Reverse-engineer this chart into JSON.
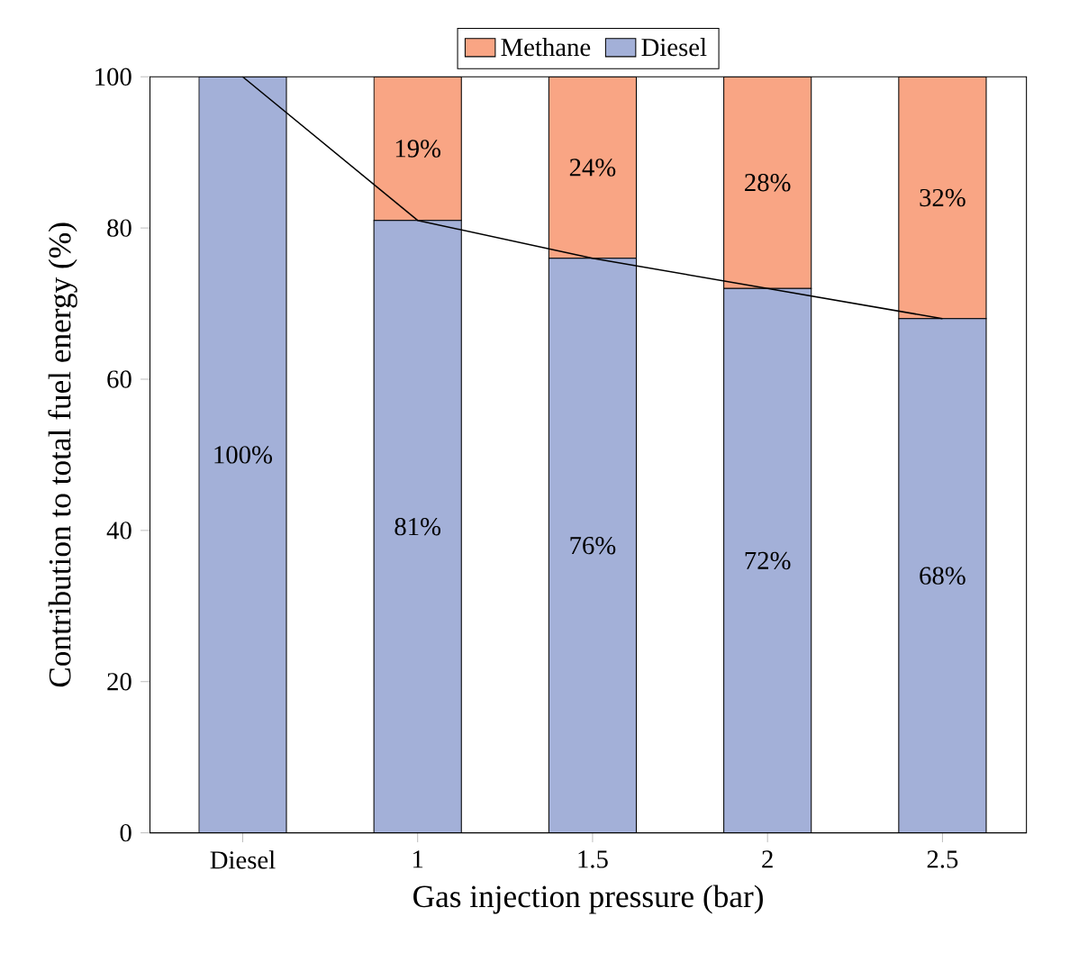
{
  "chart_data": {
    "type": "bar",
    "stacked": true,
    "xlabel": "Gas injection pressure (bar)",
    "ylabel": "Contribution to total fuel energy (%)",
    "categories": [
      "Diesel",
      "1",
      "1.5",
      "2",
      "2.5"
    ],
    "series": [
      {
        "name": "Diesel",
        "color": "#a3b0d8",
        "values": [
          100,
          81,
          76,
          72,
          68
        ],
        "value_labels": [
          "100%",
          "81%",
          "76%",
          "72%",
          "68%"
        ]
      },
      {
        "name": "Methane",
        "color": "#f9a584",
        "values": [
          0,
          19,
          24,
          28,
          32
        ],
        "value_labels": [
          null,
          "19%",
          "24%",
          "28%",
          "32%"
        ]
      },
      {
        "type": "line",
        "color": "#000000",
        "values": [
          100,
          81,
          76,
          72,
          68
        ]
      }
    ],
    "ylim": [
      0,
      100
    ],
    "yticks": [
      0,
      20,
      40,
      60,
      80,
      100
    ],
    "legend": "top",
    "marker": "none",
    "grid": false
  }
}
